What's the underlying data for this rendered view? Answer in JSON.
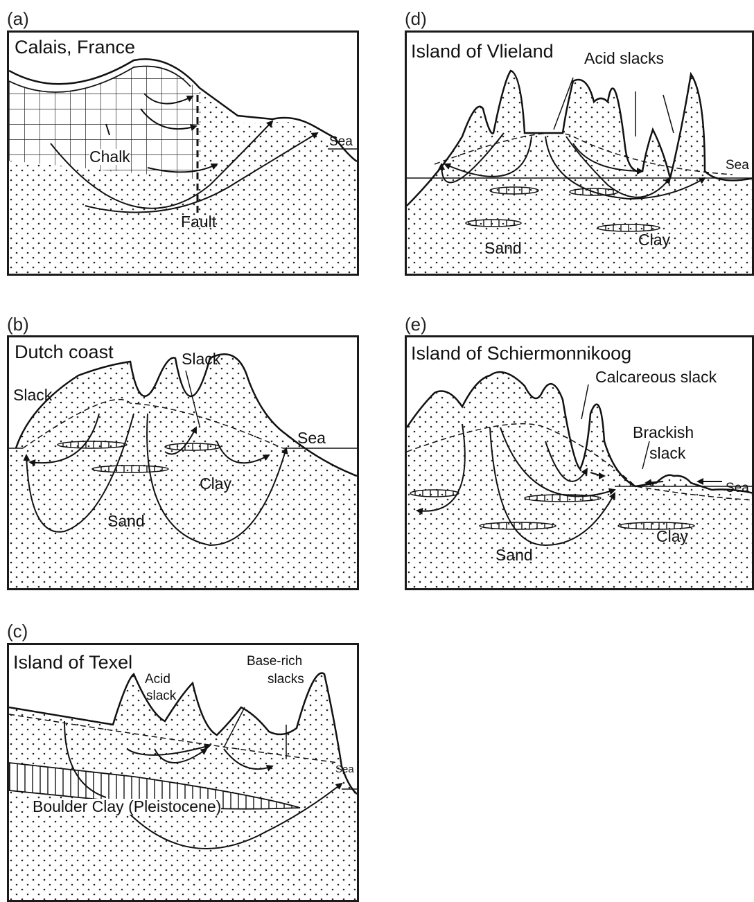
{
  "panels": {
    "a": {
      "letter": "(a)",
      "title": "Calais, France",
      "labels": {
        "chalk": "Chalk",
        "fault": "Fault",
        "sea": "Sea"
      }
    },
    "b": {
      "letter": "(b)",
      "title": "Dutch coast",
      "labels": {
        "slack_left": "Slack",
        "slack_top": "Slack",
        "sea": "Sea",
        "clay": "Clay",
        "sand": "Sand"
      }
    },
    "c": {
      "letter": "(c)",
      "title": "Island of Texel",
      "labels": {
        "acid": "Acid",
        "slack": "slack",
        "base_rich": "Base-rich",
        "slacks": "slacks",
        "sea": "Sea",
        "boulder_clay": "Boulder Clay (Pleistocene)"
      }
    },
    "d": {
      "letter": "(d)",
      "title": "Island of Vlieland",
      "labels": {
        "acid_slacks": "Acid slacks",
        "sea": "Sea",
        "sand": "Sand",
        "clay": "Clay"
      }
    },
    "e": {
      "letter": "(e)",
      "title": "Island of Schiermonnikoog",
      "labels": {
        "calcareous_slack": "Calcareous slack",
        "brackish": "Brackish",
        "slack": "slack",
        "sea": "Sea",
        "clay": "Clay",
        "sand": "Sand"
      }
    }
  },
  "colors": {
    "line": "#1a1a1a",
    "background": "#ffffff"
  }
}
